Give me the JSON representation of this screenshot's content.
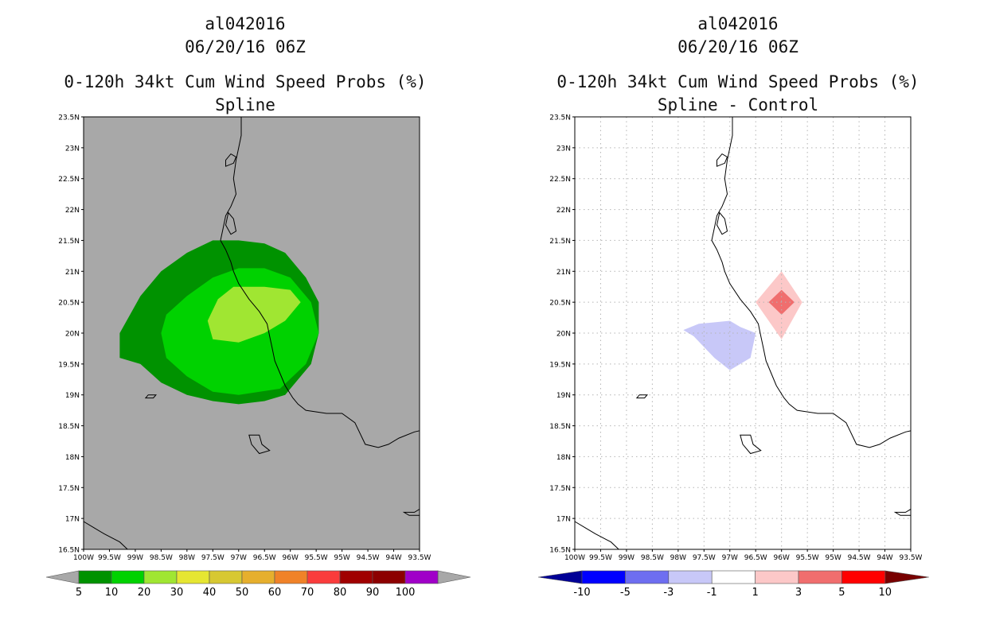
{
  "panels": [
    {
      "storm_id": "al042016",
      "datetime": "06/20/16 06Z",
      "product": "0-120h 34kt Cum Wind Speed Probs (%)",
      "subtitle": "Spline",
      "background_color": "#a8a8a8",
      "colorbar": {
        "labels": [
          "5",
          "10",
          "20",
          "30",
          "40",
          "50",
          "60",
          "70",
          "80",
          "90",
          "100"
        ],
        "colors": [
          "#009200",
          "#00d200",
          "#a0e632",
          "#e6e632",
          "#d7c832",
          "#e6af2d",
          "#f08228",
          "#fa3c3c",
          "#a00000",
          "#8c0000",
          "#a000c8"
        ],
        "end_arrow_color": "#a8a8a8"
      }
    },
    {
      "storm_id": "al042016",
      "datetime": "06/20/16 06Z",
      "product": "0-120h 34kt Cum Wind Speed Probs (%)",
      "subtitle": "Spline - Control",
      "background_color": "#ffffff",
      "colorbar": {
        "labels": [
          "-10",
          "-5",
          "-3",
          "-1",
          "1",
          "3",
          "5",
          "10"
        ],
        "colors": [
          "#0000ff",
          "#6e6ef0",
          "#c8c8f8",
          "#ffffff",
          "#fcc8c8",
          "#f06e6e",
          "#ff0000"
        ],
        "end_arrow_colors": [
          "#000096",
          "#780000"
        ]
      }
    }
  ],
  "axes": {
    "lat_labels": [
      "23.5N",
      "23N",
      "22.5N",
      "22N",
      "21.5N",
      "21N",
      "20.5N",
      "20N",
      "19.5N",
      "19N",
      "18.5N",
      "18N",
      "17.5N",
      "17N",
      "16.5N"
    ],
    "lon_labels": [
      "100W",
      "99.5W",
      "99W",
      "98.5W",
      "98W",
      "97.5W",
      "97W",
      "96.5W",
      "96W",
      "95.5W",
      "95W",
      "94.5W",
      "94W",
      "93.5W"
    ],
    "lon_range": [
      -100,
      -93.5
    ],
    "lat_range": [
      16.5,
      23.5
    ]
  },
  "map_data": {
    "spline_probs": [
      {
        "level": "5-10",
        "color": "#009200",
        "polygon": [
          [
            -98.5,
            21.0
          ],
          [
            -98.0,
            21.3
          ],
          [
            -97.5,
            21.5
          ],
          [
            -97.0,
            21.5
          ],
          [
            -96.5,
            21.45
          ],
          [
            -96.1,
            21.3
          ],
          [
            -95.7,
            20.9
          ],
          [
            -95.45,
            20.5
          ],
          [
            -95.45,
            20.0
          ],
          [
            -95.6,
            19.5
          ],
          [
            -96.1,
            19.0
          ],
          [
            -96.5,
            18.9
          ],
          [
            -97.0,
            18.85
          ],
          [
            -97.5,
            18.9
          ],
          [
            -98.0,
            19.0
          ],
          [
            -98.5,
            19.2
          ],
          [
            -98.9,
            19.5
          ],
          [
            -99.3,
            19.6
          ],
          [
            -99.3,
            20.0
          ],
          [
            -98.9,
            20.6
          ]
        ]
      },
      {
        "level": "10-20",
        "color": "#00d200",
        "polygon": [
          [
            -98.0,
            20.6
          ],
          [
            -97.5,
            20.9
          ],
          [
            -97.0,
            21.05
          ],
          [
            -96.5,
            21.05
          ],
          [
            -96.0,
            20.9
          ],
          [
            -95.6,
            20.5
          ],
          [
            -95.45,
            20.0
          ],
          [
            -95.7,
            19.5
          ],
          [
            -96.2,
            19.1
          ],
          [
            -97.0,
            19.0
          ],
          [
            -97.5,
            19.05
          ],
          [
            -98.0,
            19.3
          ],
          [
            -98.4,
            19.6
          ],
          [
            -98.5,
            20.0
          ],
          [
            -98.4,
            20.3
          ]
        ]
      },
      {
        "level": "20-30",
        "color": "#a0e632",
        "polygon": [
          [
            -97.4,
            20.55
          ],
          [
            -97.1,
            20.75
          ],
          [
            -96.5,
            20.75
          ],
          [
            -96.0,
            20.7
          ],
          [
            -95.8,
            20.5
          ],
          [
            -96.1,
            20.2
          ],
          [
            -96.5,
            20.0
          ],
          [
            -97.0,
            19.85
          ],
          [
            -97.5,
            19.9
          ],
          [
            -97.6,
            20.2
          ]
        ]
      }
    ],
    "diff_regions": [
      {
        "level": "-3 to -1",
        "color": "#c8c8f8",
        "polygon": [
          [
            -97.9,
            20.05
          ],
          [
            -97.6,
            20.15
          ],
          [
            -97.0,
            20.2
          ],
          [
            -96.8,
            20.1
          ],
          [
            -96.5,
            20.0
          ],
          [
            -96.6,
            19.6
          ],
          [
            -97.0,
            19.4
          ],
          [
            -97.3,
            19.6
          ],
          [
            -97.7,
            19.95
          ]
        ]
      },
      {
        "level": "1 to 3",
        "color": "#fcc8c8",
        "polygon": [
          [
            -96.0,
            21.0
          ],
          [
            -95.6,
            20.5
          ],
          [
            -96.0,
            19.9
          ],
          [
            -96.5,
            20.5
          ]
        ]
      },
      {
        "level": "3 to 5",
        "color": "#f06e6e",
        "polygon": [
          [
            -96.0,
            20.7
          ],
          [
            -95.75,
            20.5
          ],
          [
            -96.0,
            20.3
          ],
          [
            -96.25,
            20.5
          ]
        ]
      }
    ],
    "coastline": [
      [
        -96.95,
        23.5
      ],
      [
        -96.95,
        23.2
      ],
      [
        -97.0,
        23.0
      ],
      [
        -97.05,
        22.8
      ],
      [
        -97.1,
        22.5
      ],
      [
        -97.05,
        22.25
      ],
      [
        -97.15,
        22.05
      ],
      [
        -97.25,
        21.9
      ],
      [
        -97.3,
        21.7
      ],
      [
        -97.35,
        21.5
      ],
      [
        -97.25,
        21.35
      ],
      [
        -97.15,
        21.15
      ],
      [
        -97.1,
        21.0
      ],
      [
        -97.0,
        20.8
      ],
      [
        -96.8,
        20.55
      ],
      [
        -96.6,
        20.35
      ],
      [
        -96.45,
        20.15
      ],
      [
        -96.4,
        19.95
      ],
      [
        -96.35,
        19.75
      ],
      [
        -96.3,
        19.55
      ],
      [
        -96.2,
        19.35
      ],
      [
        -96.1,
        19.15
      ],
      [
        -95.95,
        18.95
      ],
      [
        -95.85,
        18.85
      ],
      [
        -95.7,
        18.75
      ],
      [
        -95.3,
        18.7
      ],
      [
        -95.0,
        18.7
      ],
      [
        -94.75,
        18.55
      ],
      [
        -94.55,
        18.2
      ],
      [
        -94.3,
        18.15
      ],
      [
        -94.1,
        18.2
      ],
      [
        -93.9,
        18.3
      ],
      [
        -93.6,
        18.4
      ],
      [
        -93.5,
        18.42
      ]
    ],
    "coastline_south": [
      [
        -100.0,
        16.95
      ],
      [
        -99.8,
        16.85
      ],
      [
        -99.6,
        16.75
      ],
      [
        -99.3,
        16.62
      ],
      [
        -99.15,
        16.5
      ]
    ],
    "island_coasts": [
      [
        [
          -97.25,
          22.7
        ],
        [
          -97.1,
          22.75
        ],
        [
          -97.05,
          22.85
        ],
        [
          -97.15,
          22.9
        ],
        [
          -97.25,
          22.8
        ]
      ],
      [
        [
          -97.2,
          21.95
        ],
        [
          -97.1,
          21.85
        ],
        [
          -97.05,
          21.65
        ],
        [
          -97.15,
          21.6
        ],
        [
          -97.25,
          21.75
        ]
      ],
      [
        [
          -98.75,
          19.0
        ],
        [
          -98.6,
          19.0
        ],
        [
          -98.65,
          18.95
        ],
        [
          -98.8,
          18.95
        ]
      ],
      [
        [
          -96.8,
          18.35
        ],
        [
          -96.6,
          18.35
        ],
        [
          -96.55,
          18.2
        ],
        [
          -96.4,
          18.1
        ],
        [
          -96.6,
          18.05
        ],
        [
          -96.75,
          18.2
        ]
      ],
      [
        [
          -93.8,
          17.1
        ],
        [
          -93.6,
          17.1
        ],
        [
          -93.5,
          17.15
        ],
        [
          -93.5,
          17.05
        ],
        [
          -93.7,
          17.05
        ]
      ]
    ]
  }
}
